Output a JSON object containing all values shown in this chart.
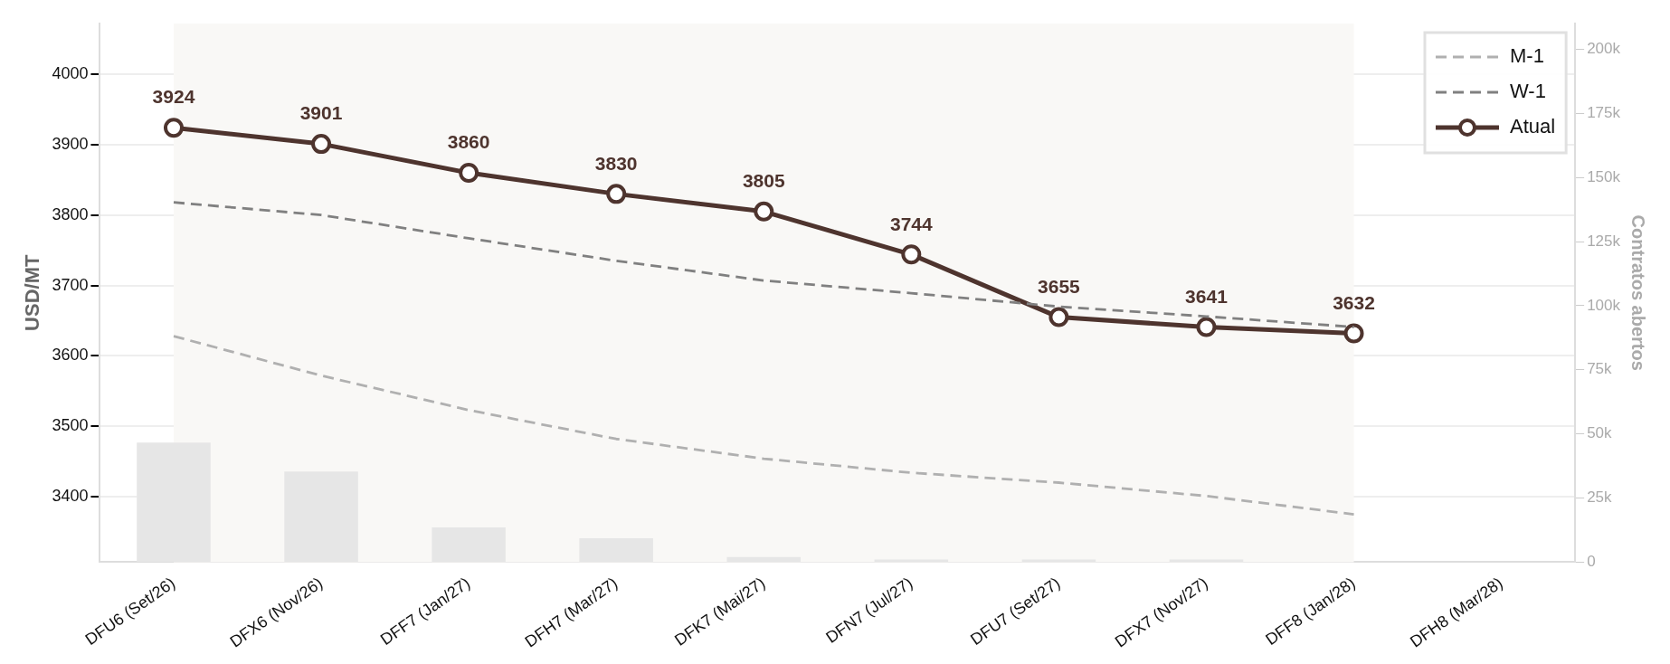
{
  "chart_data": {
    "type": "line",
    "ylabel": "USD/MT",
    "y2label": "Contratos abertos",
    "categories": [
      "DFU6 (Set/26)",
      "DFX6 (Nov/26)",
      "DFF7 (Jan/27)",
      "DFH7 (Mar/27)",
      "DFK7 (Mai/27)",
      "DFN7 (Jul/27)",
      "DFU7 (Set/27)",
      "DFX7 (Nov/27)",
      "DFF8 (Jan/28)",
      "DFH8 (Mar/28)"
    ],
    "series": [
      {
        "type": "bar",
        "axis": "y2",
        "color": "#e6e6e6",
        "values": [
          46600,
          35300,
          13600,
          9300,
          2000,
          1000,
          1000,
          1000,
          null,
          null
        ]
      },
      {
        "name": "M-1",
        "color": "#b0b0b0",
        "line_style": "dashed",
        "marker": "none",
        "values": [
          3628,
          3572,
          3523,
          3482,
          3454,
          3434,
          3420,
          3401,
          3375,
          null
        ]
      },
      {
        "name": "W-1",
        "color": "#808080",
        "line_style": "dashed",
        "marker": "none",
        "values": [
          3818,
          3800,
          3767,
          3735,
          3707,
          3689,
          3670,
          3656,
          3641,
          null
        ]
      },
      {
        "name": "Atual",
        "color": "#4e342e",
        "line_style": "solid",
        "marker": "circle",
        "values": [
          3924,
          3901,
          3860,
          3830,
          3805,
          3744,
          3655,
          3641,
          3632,
          null
        ],
        "value_labels": [
          "3924",
          "3901",
          "3860",
          "3830",
          "3805",
          "3744",
          "3655",
          "3641",
          "3632",
          null
        ]
      }
    ],
    "ylim": [
      3307,
      4072
    ],
    "yticks": [
      3400,
      3500,
      3600,
      3700,
      3800,
      3900,
      4000
    ],
    "y2lim": [
      0,
      210000
    ],
    "y2ticks": [
      {
        "value": 0,
        "label": "0"
      },
      {
        "value": 25000,
        "label": "25k"
      },
      {
        "value": 50000,
        "label": "50k"
      },
      {
        "value": 75000,
        "label": "75k"
      },
      {
        "value": 100000,
        "label": "100k"
      },
      {
        "value": 125000,
        "label": "125k"
      },
      {
        "value": 150000,
        "label": "150k"
      },
      {
        "value": 175000,
        "label": "175k"
      },
      {
        "value": 200000,
        "label": "200k"
      }
    ],
    "bands": [
      {
        "axis": "x",
        "from": "DFU6 (Set/26)",
        "to": "DFF8 (Jan/28)",
        "color": "#f9f8f6"
      }
    ],
    "grid": "y",
    "legend": "top right"
  }
}
